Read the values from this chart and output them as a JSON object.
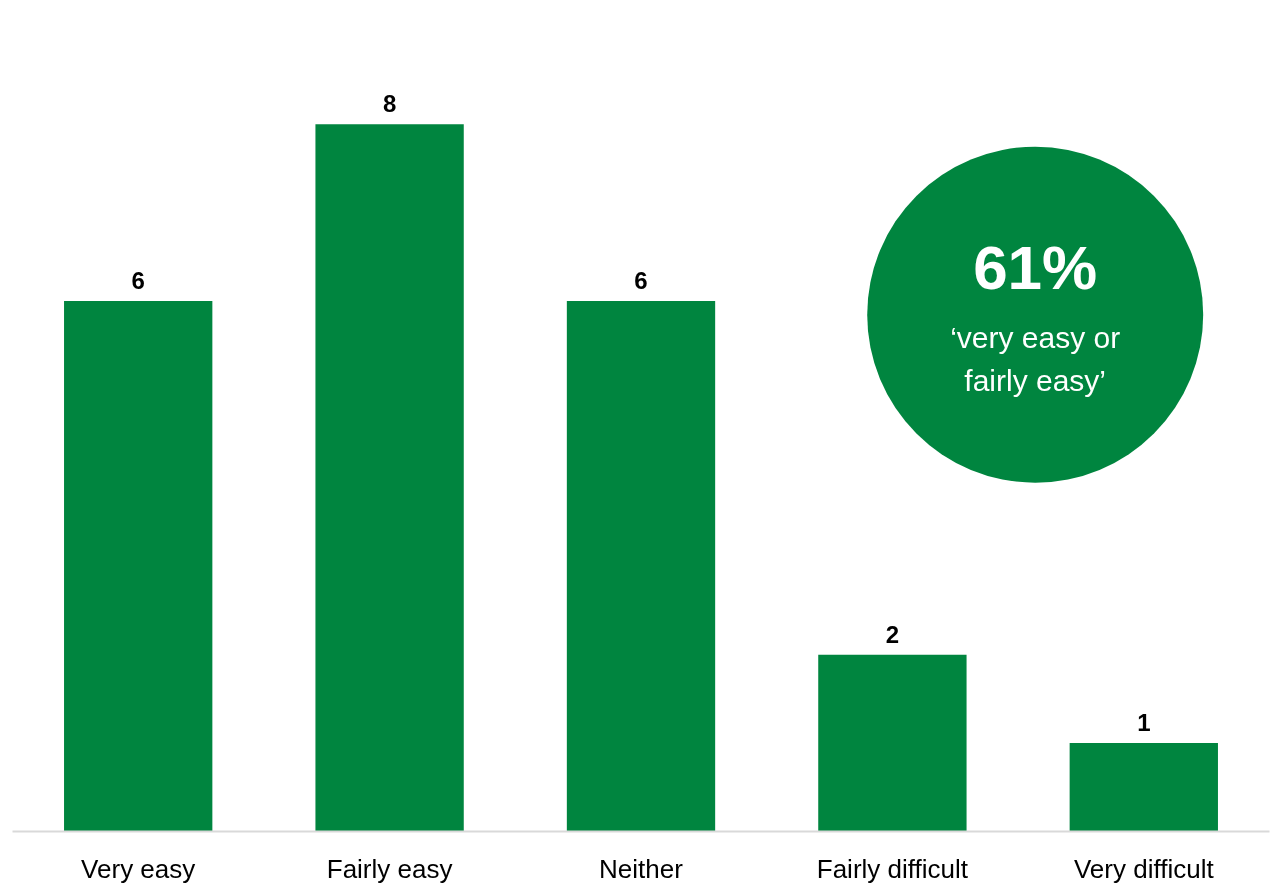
{
  "chart_data": {
    "type": "bar",
    "categories": [
      "Very easy",
      "Fairly easy",
      "Neither",
      "Fairly difficult",
      "Very difficult"
    ],
    "values": [
      6,
      8,
      6,
      2,
      1
    ],
    "color": "#00853f",
    "data_labels": true,
    "annotations": [
      "61%",
      "‘very easy or fairly easy’"
    ],
    "grid": false
  }
}
